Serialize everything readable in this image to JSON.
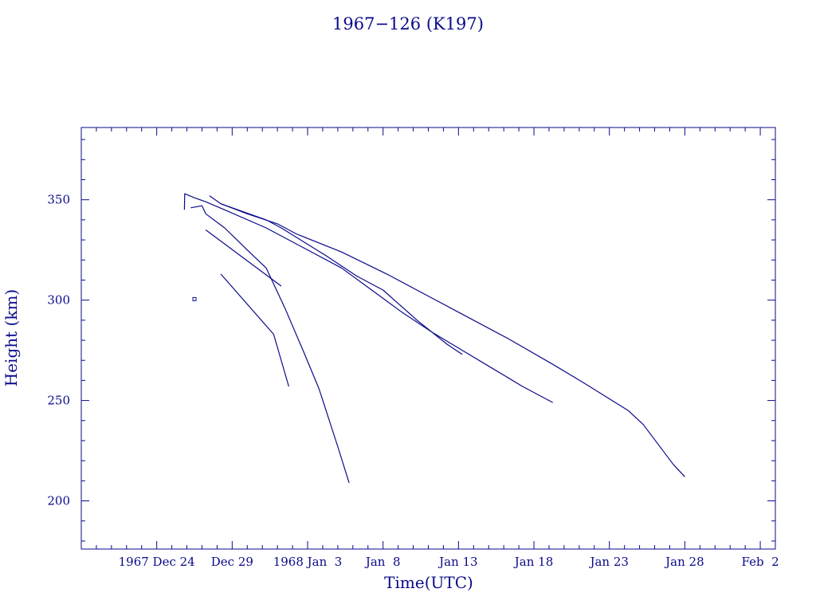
{
  "colors": {
    "ink": "#0a0a8a",
    "background": "#ffffff"
  },
  "chart_data": {
    "type": "line",
    "title": "1967−126 (K197)",
    "xlabel": "Time(UTC)",
    "ylabel": "Height (km)",
    "xlim": [
      "1967-12-19",
      "1968-02-03"
    ],
    "ylim": [
      176,
      386
    ],
    "grid": false,
    "x_ticks": [
      {
        "date": "1967-12-24",
        "label": "1967 Dec 24"
      },
      {
        "date": "1967-12-29",
        "label": "Dec 29"
      },
      {
        "date": "1968-01-03",
        "label": "1968 Jan  3"
      },
      {
        "date": "1968-01-08",
        "label": "Jan  8"
      },
      {
        "date": "1968-01-13",
        "label": "Jan 13"
      },
      {
        "date": "1968-01-18",
        "label": "Jan 18"
      },
      {
        "date": "1968-01-23",
        "label": "Jan 23"
      },
      {
        "date": "1968-01-28",
        "label": "Jan 28"
      },
      {
        "date": "1968-02-02",
        "label": "Feb  2"
      }
    ],
    "y_ticks": [
      200,
      250,
      300,
      350
    ],
    "series": [
      {
        "points": [
          [
            "1967-12-25 20:00",
            345
          ],
          [
            "1967-12-25 20:30",
            353
          ],
          [
            "1967-12-26 12:00",
            351
          ],
          [
            "1967-12-27 06:00",
            349
          ],
          [
            "1967-12-28 12:00",
            345
          ],
          [
            "1967-12-31 06:00",
            336
          ],
          [
            "1968-01-02 18:00",
            326
          ],
          [
            "1968-01-05 06:00",
            316
          ],
          [
            "1968-01-07 06:00",
            305
          ],
          [
            "1968-01-09 06:00",
            294
          ],
          [
            "1968-01-11 06:00",
            284
          ],
          [
            "1968-01-13 06:00",
            275
          ],
          [
            "1968-01-15 06:00",
            266
          ],
          [
            "1968-01-17 06:00",
            257
          ],
          [
            "1968-01-19 06:00",
            249
          ]
        ]
      },
      {
        "points": [
          [
            "1967-12-26 06:00",
            346
          ],
          [
            "1967-12-27 00:00",
            347
          ],
          [
            "1967-12-27 06:00",
            343
          ],
          [
            "1967-12-28 12:00",
            336
          ],
          [
            "1967-12-30 00:00",
            325
          ],
          [
            "1967-12-31 06:00",
            316
          ],
          [
            "1968-01-01 12:00",
            296
          ],
          [
            "1968-01-02 18:00",
            274
          ],
          [
            "1968-01-03 18:00",
            256
          ],
          [
            "1968-01-05 00:00",
            227
          ],
          [
            "1968-01-05 18:00",
            209
          ]
        ]
      },
      {
        "points": [
          [
            "1967-12-27 12:00",
            352
          ],
          [
            "1967-12-28 06:00",
            348
          ],
          [
            "1967-12-30 00:00",
            343
          ],
          [
            "1968-01-01 00:00",
            338
          ],
          [
            "1968-01-02 06:00",
            333
          ],
          [
            "1968-01-05 06:00",
            324
          ],
          [
            "1968-01-08 06:00",
            313
          ],
          [
            "1968-01-11 06:00",
            301
          ],
          [
            "1968-01-13 06:00",
            293
          ],
          [
            "1968-01-16 06:00",
            281
          ],
          [
            "1968-01-19 06:00",
            268
          ],
          [
            "1968-01-21 06:00",
            259
          ],
          [
            "1968-01-24 06:00",
            245
          ],
          [
            "1968-01-25 06:00",
            238
          ],
          [
            "1968-01-27 06:00",
            218
          ],
          [
            "1968-01-28 00:00",
            212
          ]
        ]
      },
      {
        "points": [
          [
            "1967-12-28 06:00",
            348
          ],
          [
            "1967-12-31 06:00",
            340
          ],
          [
            "1968-01-01 06:00",
            336
          ],
          [
            "1968-01-04 06:00",
            322
          ],
          [
            "1968-01-06 06:00",
            312
          ],
          [
            "1968-01-08 00:00",
            305
          ],
          [
            "1968-01-10 06:00",
            290
          ],
          [
            "1968-01-12 06:00",
            278
          ],
          [
            "1968-01-13 06:00",
            273
          ]
        ]
      },
      {
        "points": [
          [
            "1967-12-27 06:00",
            335
          ],
          [
            "1968-01-01 06:00",
            307
          ]
        ]
      },
      {
        "points": [
          [
            "1967-12-28 06:00",
            313
          ],
          [
            "1967-12-31 18:00",
            283
          ],
          [
            "1968-01-01 18:00",
            257
          ]
        ]
      },
      {
        "points": [
          [
            "1967-12-26 12:00",
            300
          ],
          [
            "1967-12-26 12:00",
            301
          ]
        ]
      }
    ]
  }
}
